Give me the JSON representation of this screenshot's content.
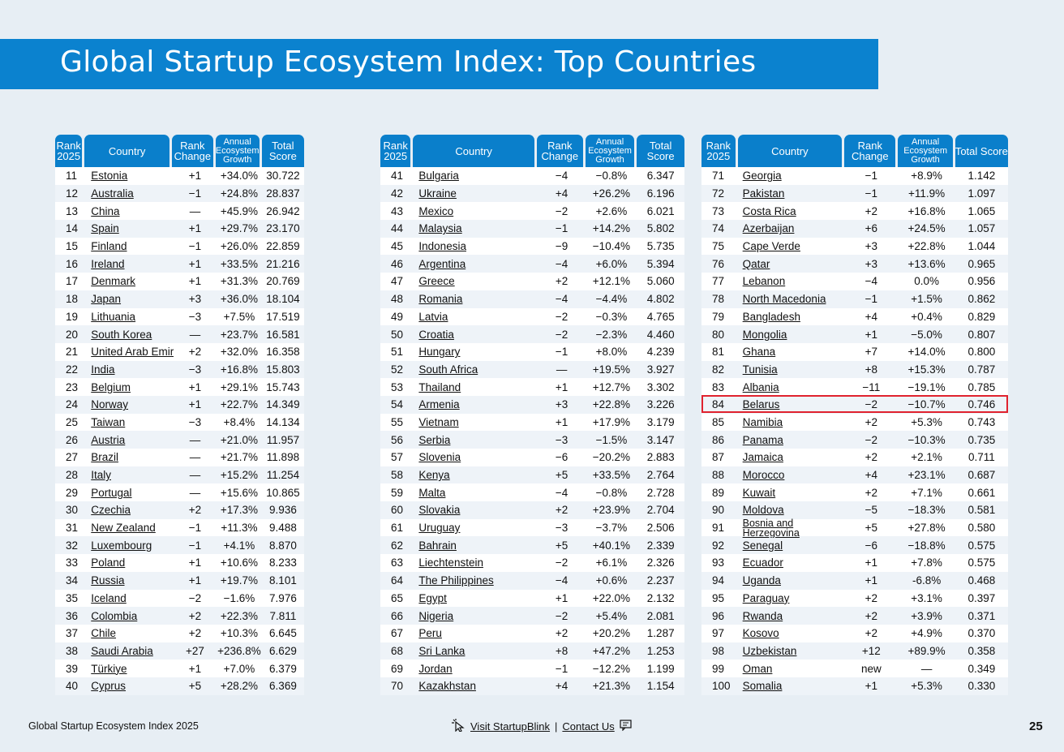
{
  "title": "Global Startup Ecosystem Index: Top Countries",
  "headers": {
    "rank": "Rank 2025",
    "country": "Country",
    "change": "Rank Change",
    "growth": "Annual Ecosystem Growth",
    "score": "Total Score"
  },
  "tables": [
    [
      [
        "11",
        "Estonia",
        "+1",
        "+34.0%",
        "30.722"
      ],
      [
        "12",
        "Australia",
        "−1",
        "+24.8%",
        "28.837"
      ],
      [
        "13",
        "China",
        "—",
        "+45.9%",
        "26.942"
      ],
      [
        "14",
        "Spain",
        "+1",
        "+29.7%",
        "23.170"
      ],
      [
        "15",
        "Finland",
        "−1",
        "+26.0%",
        "22.859"
      ],
      [
        "16",
        "Ireland",
        "+1",
        "+33.5%",
        "21.216"
      ],
      [
        "17",
        "Denmark",
        "+1",
        "+31.3%",
        "20.769"
      ],
      [
        "18",
        "Japan",
        "+3",
        "+36.0%",
        "18.104"
      ],
      [
        "19",
        "Lithuania",
        "−3",
        "+7.5%",
        "17.519"
      ],
      [
        "20",
        "South Korea",
        "—",
        "+23.7%",
        "16.581"
      ],
      [
        "21",
        "United Arab Emirates",
        "+2",
        "+32.0%",
        "16.358"
      ],
      [
        "22",
        "India",
        "−3",
        "+16.8%",
        "15.803"
      ],
      [
        "23",
        "Belgium",
        "+1",
        "+29.1%",
        "15.743"
      ],
      [
        "24",
        "Norway",
        "+1",
        "+22.7%",
        "14.349"
      ],
      [
        "25",
        "Taiwan",
        "−3",
        "+8.4%",
        "14.134"
      ],
      [
        "26",
        "Austria",
        "—",
        "+21.0%",
        "11.957"
      ],
      [
        "27",
        "Brazil",
        "—",
        "+21.7%",
        "11.898"
      ],
      [
        "28",
        "Italy",
        "—",
        "+15.2%",
        "11.254"
      ],
      [
        "29",
        "Portugal",
        "—",
        "+15.6%",
        "10.865"
      ],
      [
        "30",
        "Czechia",
        "+2",
        "+17.3%",
        "9.936"
      ],
      [
        "31",
        "New Zealand",
        "−1",
        "+11.3%",
        "9.488"
      ],
      [
        "32",
        "Luxembourg",
        "−1",
        "+4.1%",
        "8.870"
      ],
      [
        "33",
        "Poland",
        "+1",
        "+10.6%",
        "8.233"
      ],
      [
        "34",
        "Russia",
        "+1",
        "+19.7%",
        "8.101"
      ],
      [
        "35",
        "Iceland",
        "−2",
        "−1.6%",
        "7.976"
      ],
      [
        "36",
        "Colombia",
        "+2",
        "+22.3%",
        "7.811"
      ],
      [
        "37",
        "Chile",
        "+2",
        "+10.3%",
        "6.645"
      ],
      [
        "38",
        "Saudi Arabia",
        "+27",
        "+236.8%",
        "6.629"
      ],
      [
        "39",
        "Türkiye",
        "+1",
        "+7.0%",
        "6.379"
      ],
      [
        "40",
        "Cyprus",
        "+5",
        "+28.2%",
        "6.369"
      ]
    ],
    [
      [
        "41",
        "Bulgaria",
        "−4",
        "−0.8%",
        "6.347"
      ],
      [
        "42",
        "Ukraine",
        "+4",
        "+26.2%",
        "6.196"
      ],
      [
        "43",
        "Mexico",
        "−2",
        "+2.6%",
        "6.021"
      ],
      [
        "44",
        "Malaysia",
        "−1",
        "+14.2%",
        "5.802"
      ],
      [
        "45",
        "Indonesia",
        "−9",
        "−10.4%",
        "5.735"
      ],
      [
        "46",
        "Argentina",
        "−4",
        "+6.0%",
        "5.394"
      ],
      [
        "47",
        "Greece",
        "+2",
        "+12.1%",
        "5.060"
      ],
      [
        "48",
        "Romania",
        "−4",
        "−4.4%",
        "4.802"
      ],
      [
        "49",
        "Latvia",
        "−2",
        "−0.3%",
        "4.765"
      ],
      [
        "50",
        "Croatia",
        "−2",
        "−2.3%",
        "4.460"
      ],
      [
        "51",
        "Hungary",
        "−1",
        "+8.0%",
        "4.239"
      ],
      [
        "52",
        "South Africa",
        "—",
        "+19.5%",
        "3.927"
      ],
      [
        "53",
        "Thailand",
        "+1",
        "+12.7%",
        "3.302"
      ],
      [
        "54",
        "Armenia",
        "+3",
        "+22.8%",
        "3.226"
      ],
      [
        "55",
        "Vietnam",
        "+1",
        "+17.9%",
        "3.179"
      ],
      [
        "56",
        "Serbia",
        "−3",
        "−1.5%",
        "3.147"
      ],
      [
        "57",
        "Slovenia",
        "−6",
        "−20.2%",
        "2.883"
      ],
      [
        "58",
        "Kenya",
        "+5",
        "+33.5%",
        "2.764"
      ],
      [
        "59",
        "Malta",
        "−4",
        "−0.8%",
        "2.728"
      ],
      [
        "60",
        "Slovakia",
        "+2",
        "+23.9%",
        "2.704"
      ],
      [
        "61",
        "Uruguay",
        "−3",
        "−3.7%",
        "2.506"
      ],
      [
        "62",
        "Bahrain",
        "+5",
        "+40.1%",
        "2.339"
      ],
      [
        "63",
        "Liechtenstein",
        "−2",
        "+6.1%",
        "2.326"
      ],
      [
        "64",
        "The Philippines",
        "−4",
        "+0.6%",
        "2.237"
      ],
      [
        "65",
        "Egypt",
        "+1",
        "+22.0%",
        "2.132"
      ],
      [
        "66",
        "Nigeria",
        "−2",
        "+5.4%",
        "2.081"
      ],
      [
        "67",
        "Peru",
        "+2",
        "+20.2%",
        "1.287"
      ],
      [
        "68",
        "Sri Lanka",
        "+8",
        "+47.2%",
        "1.253"
      ],
      [
        "69",
        "Jordan",
        "−1",
        "−12.2%",
        "1.199"
      ],
      [
        "70",
        "Kazakhstan",
        "+4",
        "+21.3%",
        "1.154"
      ]
    ],
    [
      [
        "71",
        "Georgia",
        "−1",
        "+8.9%",
        "1.142"
      ],
      [
        "72",
        "Pakistan",
        "−1",
        "+11.9%",
        "1.097"
      ],
      [
        "73",
        "Costa Rica",
        "+2",
        "+16.8%",
        "1.065"
      ],
      [
        "74",
        "Azerbaijan",
        "+6",
        "+24.5%",
        "1.057"
      ],
      [
        "75",
        "Cape Verde",
        "+3",
        "+22.8%",
        "1.044"
      ],
      [
        "76",
        "Qatar",
        "+3",
        "+13.6%",
        "0.965"
      ],
      [
        "77",
        "Lebanon",
        "−4",
        "0.0%",
        "0.956"
      ],
      [
        "78",
        "North Macedonia",
        "−1",
        "+1.5%",
        "0.862"
      ],
      [
        "79",
        "Bangladesh",
        "+4",
        "+0.4%",
        "0.829"
      ],
      [
        "80",
        "Mongolia",
        "+1",
        "−5.0%",
        "0.807"
      ],
      [
        "81",
        "Ghana",
        "+7",
        "+14.0%",
        "0.800"
      ],
      [
        "82",
        "Tunisia",
        "+8",
        "+15.3%",
        "0.787"
      ],
      [
        "83",
        "Albania",
        "−11",
        "−19.1%",
        "0.785"
      ],
      [
        "84",
        "Belarus",
        "−2",
        "−10.7%",
        "0.746"
      ],
      [
        "85",
        "Namibia",
        "+2",
        "+5.3%",
        "0.743"
      ],
      [
        "86",
        "Panama",
        "−2",
        "−10.3%",
        "0.735"
      ],
      [
        "87",
        "Jamaica",
        "+2",
        "+2.1%",
        "0.711"
      ],
      [
        "88",
        "Morocco",
        "+4",
        "+23.1%",
        "0.687"
      ],
      [
        "89",
        "Kuwait",
        "+2",
        "+7.1%",
        "0.661"
      ],
      [
        "90",
        "Moldova",
        "−5",
        "−18.3%",
        "0.581"
      ],
      [
        "91",
        "Bosnia and Herzegovina",
        "+5",
        "+27.8%",
        "0.580"
      ],
      [
        "92",
        "Senegal",
        "−6",
        "−18.8%",
        "0.575"
      ],
      [
        "93",
        "Ecuador",
        "+1",
        "+7.8%",
        "0.575"
      ],
      [
        "94",
        "Uganda",
        "+1",
        "-6.8%",
        "0.468"
      ],
      [
        "95",
        "Paraguay",
        "+2",
        "+3.1%",
        "0.397"
      ],
      [
        "96",
        "Rwanda",
        "+2",
        "+3.9%",
        "0.371"
      ],
      [
        "97",
        "Kosovo",
        "+2",
        "+4.9%",
        "0.370"
      ],
      [
        "98",
        "Uzbekistan",
        "+12",
        "+89.9%",
        "0.358"
      ],
      [
        "99",
        "Oman",
        "new",
        "—",
        "0.349"
      ],
      [
        "100",
        "Somalia",
        "+1",
        "+5.3%",
        "0.330"
      ]
    ]
  ],
  "footer": {
    "left": "Global Startup Ecosystem Index 2025",
    "visit": "Visit StartupBlink",
    "separator": "|",
    "contact": "Contact Us",
    "page": "25"
  },
  "colors": {
    "accent": "#0b82cf",
    "highlight": "#e0222e",
    "background": "#e7eef4"
  }
}
